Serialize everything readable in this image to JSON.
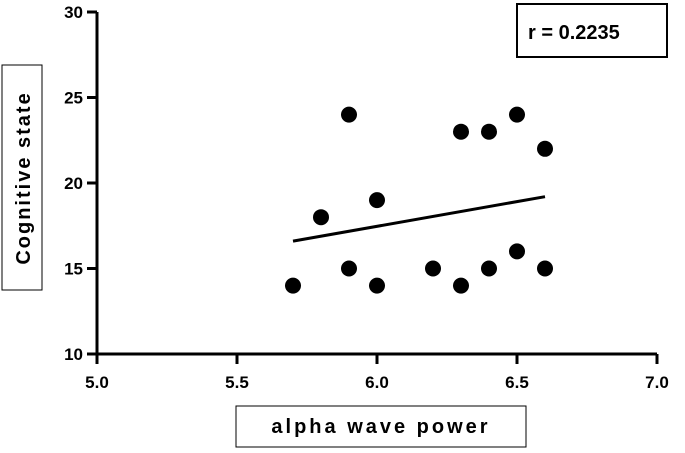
{
  "chart_data": {
    "type": "scatter",
    "xlabel": "alpha wave power",
    "ylabel": "Cognitive state",
    "xlim": [
      5.0,
      7.0
    ],
    "ylim": [
      10,
      30
    ],
    "xticks": [
      "5.0",
      "5.5",
      "6.0",
      "6.5",
      "7.0"
    ],
    "yticks": [
      "10",
      "15",
      "20",
      "25",
      "30"
    ],
    "grid": false,
    "annotation": "r = 0.2235",
    "points": [
      {
        "x": 5.7,
        "y": 14
      },
      {
        "x": 5.8,
        "y": 18
      },
      {
        "x": 5.9,
        "y": 24
      },
      {
        "x": 5.9,
        "y": 15
      },
      {
        "x": 6.0,
        "y": 19
      },
      {
        "x": 6.0,
        "y": 14
      },
      {
        "x": 6.2,
        "y": 15
      },
      {
        "x": 6.3,
        "y": 23
      },
      {
        "x": 6.3,
        "y": 14
      },
      {
        "x": 6.4,
        "y": 23
      },
      {
        "x": 6.4,
        "y": 15
      },
      {
        "x": 6.5,
        "y": 24
      },
      {
        "x": 6.5,
        "y": 16
      },
      {
        "x": 6.6,
        "y": 22
      },
      {
        "x": 6.6,
        "y": 15
      }
    ],
    "trendline": {
      "x1": 5.7,
      "y1": 16.6,
      "x2": 6.6,
      "y2": 19.2
    },
    "colors": {
      "points": "#000000",
      "axis": "#000000"
    }
  }
}
